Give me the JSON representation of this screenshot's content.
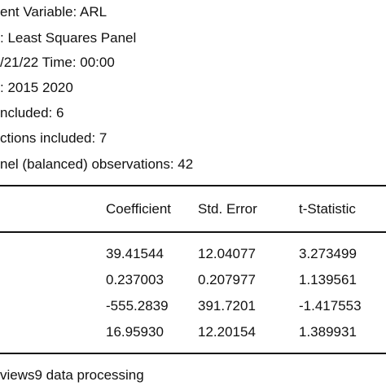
{
  "header_lines": [
    "ent Variable: ARL",
    ": Least Squares Panel",
    "/21/22 Time: 00:00",
    ": 2015 2020",
    "ncluded: 6",
    "ctions included: 7",
    "nel (balanced) observations: 42"
  ],
  "table": {
    "columns": [
      "Coefficient",
      "Std. Error",
      "t-Statistic"
    ],
    "rows": [
      {
        "coefficient": "39.41544",
        "std_error": "12.04077",
        "t_statistic": "3.273499"
      },
      {
        "coefficient": "0.237003",
        "std_error": "0.207977",
        "t_statistic": "1.139561"
      },
      {
        "coefficient": "-555.2839",
        "std_error": "391.7201",
        "t_statistic": "-1.417553"
      },
      {
        "coefficient": "16.95930",
        "std_error": "12.20154",
        "t_statistic": "1.389931"
      }
    ]
  },
  "footer": "views9 data processing"
}
